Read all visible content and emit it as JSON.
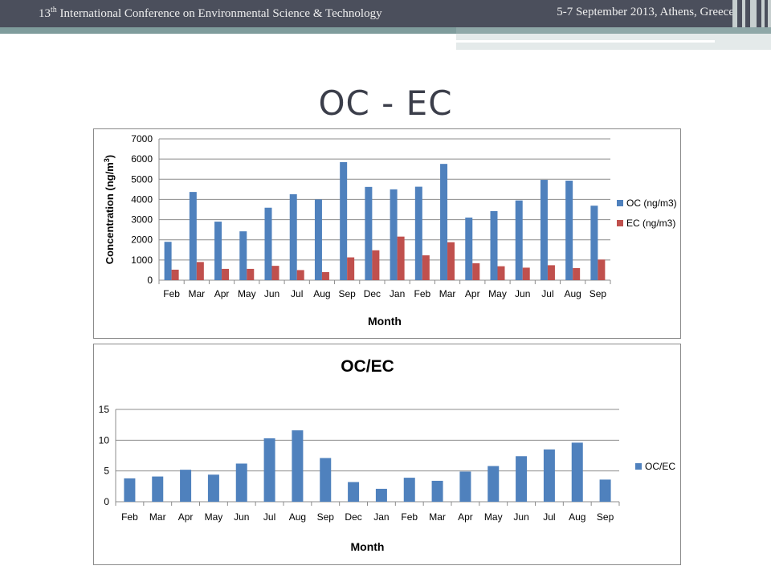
{
  "header": {
    "conference_prefix": "13",
    "conference_sup": "th",
    "conference_rest": " International Conference on Environmental Science & Technology",
    "date_location": "5-7 September 2013, Athens, Greece"
  },
  "slide": {
    "title": "OC - EC"
  },
  "colors": {
    "oc": "#4f81bd",
    "ec": "#c0504d",
    "header": "#4b4f5c"
  },
  "chart_data": [
    {
      "type": "bar",
      "title": "",
      "xlabel": "Month",
      "ylabel": "Concentration (ng/m",
      "ylabel_sup": "3",
      "ylabel_end": ")",
      "ylim": [
        0,
        7000
      ],
      "yticks": [
        0,
        1000,
        2000,
        3000,
        4000,
        5000,
        6000,
        7000
      ],
      "grid": true,
      "legend": "right",
      "categories": [
        "Feb",
        "Mar",
        "Apr",
        "May",
        "Jun",
        "Jul",
        "Aug",
        "Sep",
        "Dec",
        "Jan",
        "Feb",
        "Mar",
        "Apr",
        "May",
        "Jun",
        "Jul",
        "Aug",
        "Sep"
      ],
      "series": [
        {
          "name": "OC (ng/m3)",
          "color": "#4f81bd",
          "values": [
            1900,
            4370,
            2900,
            2420,
            3590,
            4260,
            4000,
            5850,
            4620,
            4500,
            4630,
            5760,
            3100,
            3420,
            3950,
            4970,
            4930,
            3690
          ]
        },
        {
          "name": "EC (ng/m3)",
          "color": "#c0504d",
          "values": [
            520,
            900,
            560,
            560,
            710,
            500,
            400,
            1130,
            1480,
            2160,
            1230,
            1880,
            840,
            690,
            620,
            740,
            600,
            1020
          ]
        }
      ]
    },
    {
      "type": "bar",
      "title": "OC/EC",
      "xlabel": "Month",
      "ylabel": "",
      "ylim": [
        0,
        15
      ],
      "yticks": [
        0,
        5,
        10,
        15
      ],
      "grid": true,
      "legend": "right",
      "categories": [
        "Feb",
        "Mar",
        "Apr",
        "May",
        "Jun",
        "Jul",
        "Aug",
        "Sep",
        "Dec",
        "Jan",
        "Feb",
        "Mar",
        "Apr",
        "May",
        "Jun",
        "Jul",
        "Aug",
        "Sep"
      ],
      "series": [
        {
          "name": "OC/EC",
          "color": "#4f81bd",
          "values": [
            3.8,
            4.1,
            5.2,
            4.4,
            6.2,
            10.3,
            11.6,
            7.1,
            3.2,
            2.1,
            3.9,
            3.4,
            4.9,
            5.8,
            7.4,
            8.5,
            9.6,
            3.6
          ]
        }
      ]
    }
  ]
}
